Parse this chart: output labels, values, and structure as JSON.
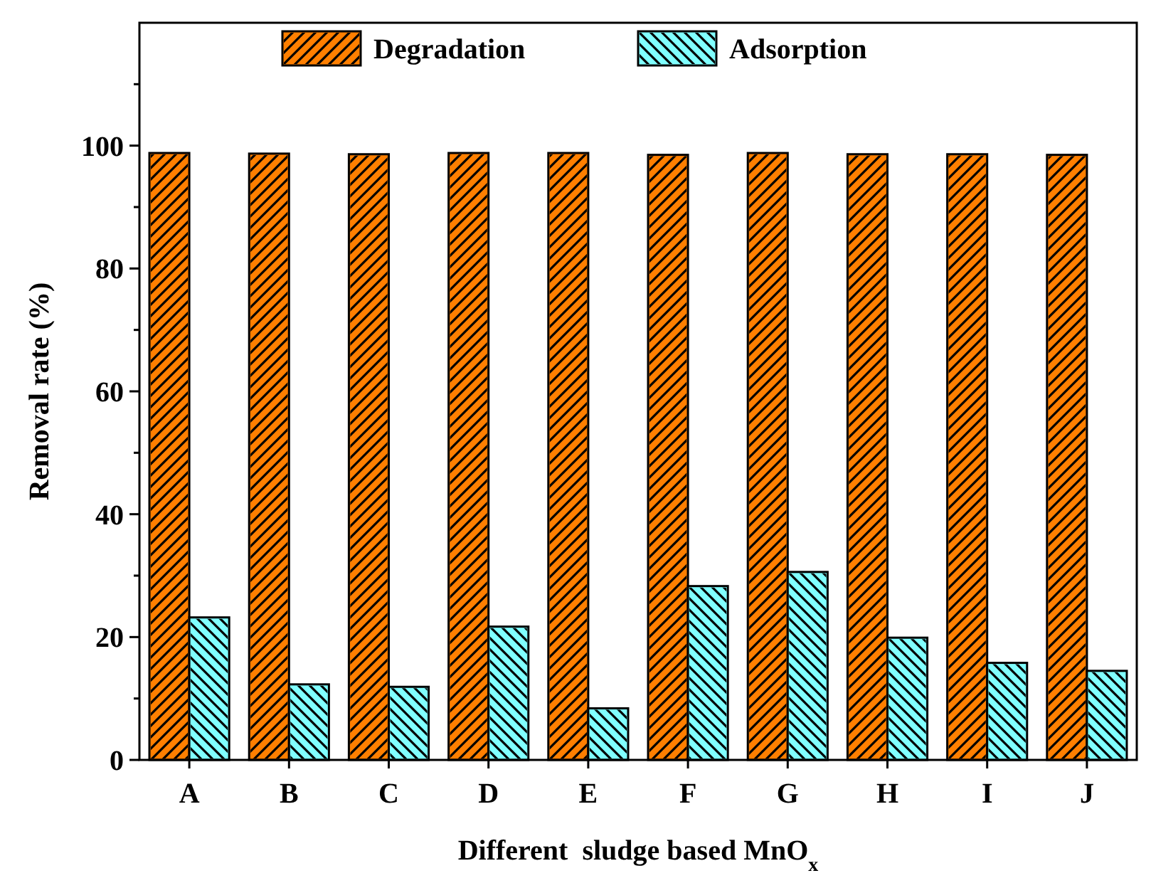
{
  "chart_data": {
    "type": "bar",
    "xlabel": "Different  sludge based MnO$_{x}$",
    "ylabel": "Removal rate (%)",
    "categories": [
      "A",
      "B",
      "C",
      "D",
      "E",
      "F",
      "G",
      "H",
      "I",
      "J"
    ],
    "series": [
      {
        "name": "Degradation",
        "color": "#ff7f00",
        "values": [
          98.8,
          98.7,
          98.6,
          98.8,
          98.8,
          98.5,
          98.8,
          98.6,
          98.6,
          98.5
        ]
      },
      {
        "name": "Adsorption",
        "color": "#80ffff",
        "values": [
          23.2,
          12.3,
          11.9,
          21.7,
          8.4,
          28.3,
          30.6,
          19.9,
          15.8,
          14.5
        ]
      }
    ],
    "ylim": [
      0,
      120
    ],
    "yticks": [
      0,
      {
        "value": 10,
        "label": null
      },
      20,
      {
        "value": 30,
        "label": null
      },
      40,
      {
        "value": 50,
        "label": null
      },
      60,
      {
        "value": 70,
        "label": null
      },
      80,
      {
        "value": 90,
        "label": null
      },
      100,
      {
        "value": 110,
        "label": null
      }
    ],
    "grid": false,
    "legend": "top"
  }
}
